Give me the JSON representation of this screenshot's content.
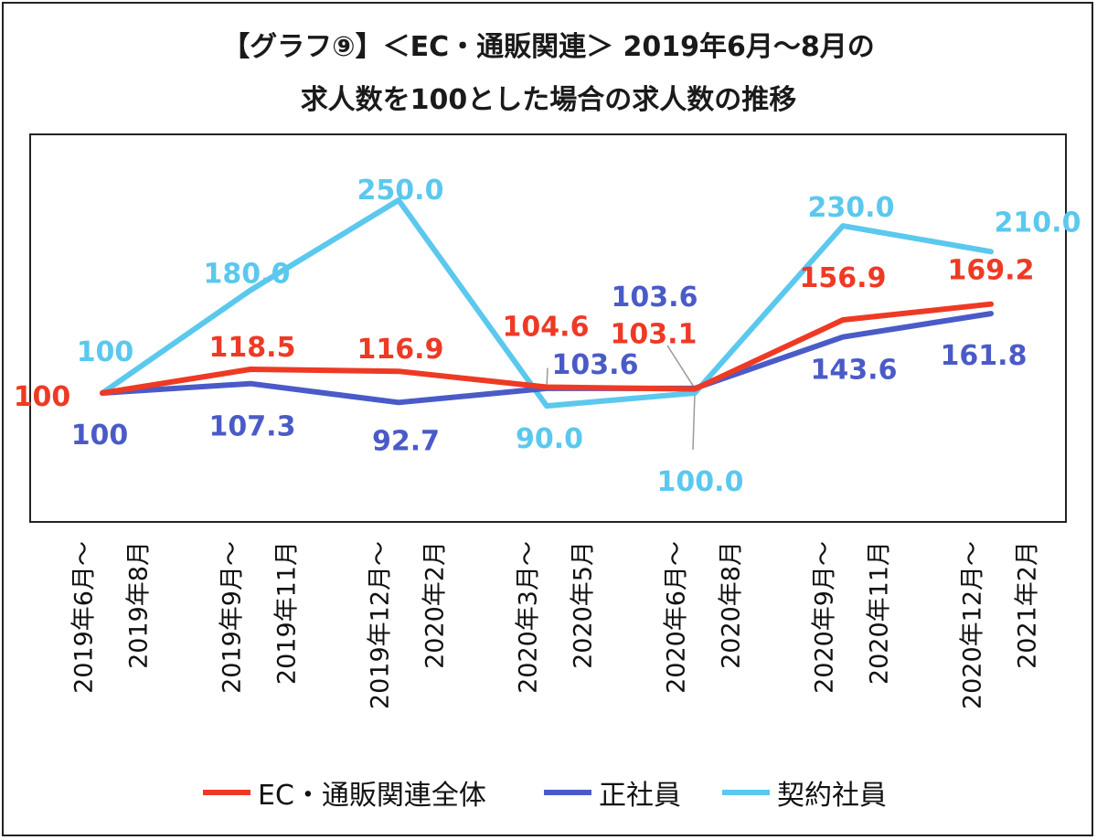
{
  "chart_data": {
    "type": "line",
    "title_line1": "【グラフ⑨】＜EC・通販関連＞ 2019年6月～8月の",
    "title_line2": "求人数を100とした場合の求人数の推移",
    "categories": [
      [
        "2019年6月～",
        "2019年8月"
      ],
      [
        "2019年9月～",
        "2019年11月"
      ],
      [
        "2019年12月～",
        "2020年2月"
      ],
      [
        "2020年3月～",
        "2020年5月"
      ],
      [
        "2020年6月～",
        "2020年8月"
      ],
      [
        "2020年9月～",
        "2020年11月"
      ],
      [
        "2020年12月～",
        "2021年2月"
      ]
    ],
    "series": [
      {
        "name": "EC・通販関連全体",
        "color": "#ee3a24",
        "values": [
          100,
          118.5,
          116.9,
          104.6,
          103.1,
          156.9,
          169.2
        ],
        "labels": [
          "100",
          "118.5",
          "116.9",
          "104.6",
          "103.1",
          "156.9",
          "169.2"
        ]
      },
      {
        "name": "正社員",
        "color": "#4a5bc8",
        "values": [
          100,
          107.3,
          92.7,
          103.6,
          103.6,
          143.6,
          161.8
        ],
        "labels": [
          "100",
          "107.3",
          "92.7",
          "103.6",
          "103.6",
          "143.6",
          "161.8"
        ]
      },
      {
        "name": "契約社員",
        "color": "#5bc8ee",
        "values": [
          100,
          180.0,
          250.0,
          90.0,
          100.0,
          230.0,
          210.0
        ],
        "labels": [
          "100",
          "180.0",
          "250.0",
          "90.0",
          "100.0",
          "230.0",
          "210.0"
        ]
      }
    ],
    "legend_position": "bottom",
    "grid": false
  }
}
